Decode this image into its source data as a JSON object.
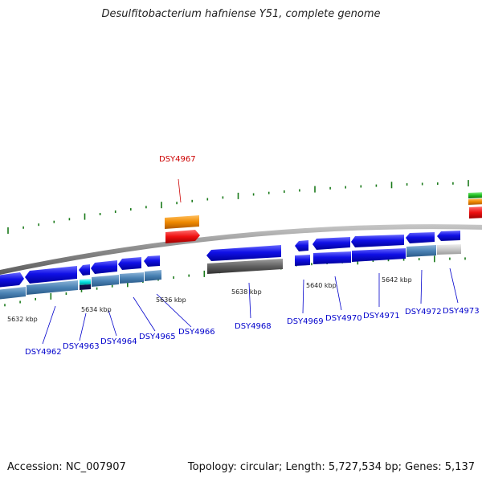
{
  "title": "Desulfitobacterium hafniense Y51, complete genome",
  "footer": {
    "accession": "Accession: NC_007907",
    "summary": "Topology: circular; Length: 5,727,534 bp; Genes: 5,137"
  },
  "kbp_labels": [
    "5632 kbp",
    "5634 kbp",
    "5636 kbp",
    "5638 kbp",
    "5640 kbp",
    "5642 kbp"
  ],
  "genes": [
    "DSY4962",
    "DSY4963",
    "DSY4964",
    "DSY4965",
    "DSY4966",
    "DSY4967",
    "DSY4968",
    "DSY4969",
    "DSY4970",
    "DSY4971",
    "DSY4972",
    "DSY4973"
  ],
  "highlighted_gene": "DSY4967",
  "colors": {
    "gene_blue": "#1010e6",
    "steel": "#4a82b4",
    "backbone": "#8a8a8a",
    "tick": "#1a7a1a",
    "highlight_label": "#cc0000",
    "label_blue": "#0000cc",
    "orange": "#f08a00",
    "red": "#ee1010",
    "dark_gray": "#606060",
    "light_gray": "#c8c8c8",
    "cyan": "#00e0e0",
    "green": "#20c020"
  }
}
